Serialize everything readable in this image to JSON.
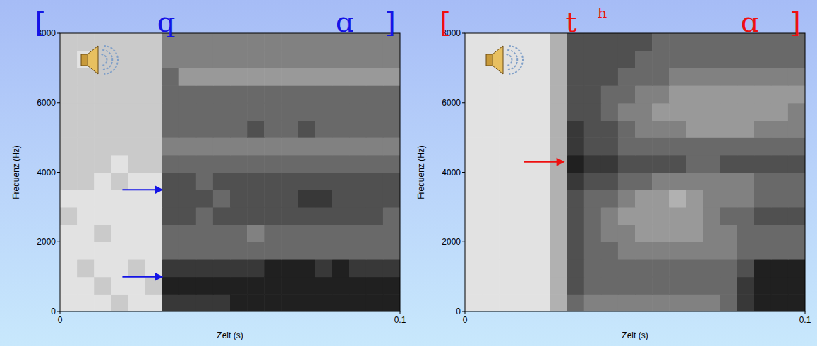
{
  "chart_data": [
    {
      "type": "heatmap",
      "title": "[qɑ]",
      "color": "#1414e6",
      "x_label": "Zeit (s)",
      "y_label": "Frequenz (Hz)",
      "xlim": [
        0,
        0.1
      ],
      "xticks": [
        0,
        0.1
      ],
      "ylim": [
        0,
        8000
      ],
      "yticks": [
        0,
        2000,
        4000,
        6000,
        8000
      ],
      "cell_width": 0.005,
      "cell_height": 500,
      "zlim": [
        0,
        9
      ],
      "arrows": [
        {
          "x": 0.031,
          "y": 3500
        },
        {
          "x": 0.031,
          "y": 1000
        }
      ],
      "cells": [
        [
          1,
          1,
          1,
          2,
          1,
          1,
          8,
          8,
          8,
          8,
          9,
          9,
          9,
          9,
          9,
          9,
          9,
          9,
          9,
          9
        ],
        [
          1,
          1,
          2,
          1,
          1,
          2,
          9,
          9,
          9,
          9,
          9,
          9,
          9,
          9,
          9,
          9,
          9,
          9,
          9,
          9
        ],
        [
          1,
          2,
          1,
          1,
          2,
          1,
          8,
          8,
          8,
          8,
          8,
          8,
          9,
          9,
          9,
          8,
          9,
          8,
          8,
          8
        ],
        [
          1,
          1,
          1,
          1,
          1,
          1,
          6,
          6,
          6,
          6,
          6,
          6,
          6,
          6,
          6,
          6,
          6,
          6,
          6,
          6
        ],
        [
          1,
          1,
          2,
          1,
          1,
          1,
          6,
          6,
          6,
          6,
          6,
          5,
          6,
          6,
          6,
          6,
          6,
          6,
          6,
          6
        ],
        [
          2,
          1,
          1,
          1,
          1,
          1,
          7,
          7,
          6,
          7,
          7,
          7,
          7,
          7,
          7,
          7,
          7,
          7,
          7,
          6
        ],
        [
          1,
          1,
          1,
          1,
          1,
          1,
          7,
          7,
          7,
          6,
          7,
          7,
          7,
          7,
          8,
          8,
          7,
          7,
          7,
          7
        ],
        [
          2,
          2,
          1,
          2,
          1,
          1,
          7,
          7,
          6,
          7,
          7,
          7,
          7,
          7,
          7,
          7,
          7,
          7,
          7,
          7
        ],
        [
          2,
          2,
          2,
          1,
          2,
          2,
          6,
          6,
          6,
          6,
          6,
          6,
          6,
          6,
          6,
          6,
          6,
          6,
          6,
          6
        ],
        [
          2,
          2,
          2,
          2,
          2,
          2,
          5,
          5,
          5,
          5,
          5,
          5,
          5,
          5,
          5,
          5,
          5,
          5,
          5,
          5
        ],
        [
          2,
          2,
          2,
          2,
          2,
          2,
          6,
          6,
          6,
          6,
          6,
          7,
          6,
          6,
          7,
          6,
          6,
          6,
          6,
          6
        ],
        [
          2,
          2,
          2,
          2,
          2,
          2,
          6,
          6,
          6,
          6,
          6,
          6,
          6,
          6,
          6,
          6,
          6,
          6,
          6,
          6
        ],
        [
          2,
          2,
          2,
          2,
          2,
          2,
          6,
          6,
          6,
          6,
          6,
          6,
          6,
          6,
          6,
          6,
          6,
          6,
          6,
          6
        ],
        [
          2,
          2,
          2,
          2,
          2,
          2,
          6,
          4,
          4,
          4,
          4,
          4,
          4,
          4,
          4,
          4,
          4,
          4,
          4,
          4
        ],
        [
          2,
          1,
          2,
          2,
          2,
          2,
          5,
          5,
          5,
          5,
          5,
          5,
          5,
          5,
          5,
          5,
          5,
          5,
          5,
          5
        ],
        [
          2,
          2,
          2,
          2,
          2,
          2,
          5,
          5,
          5,
          5,
          5,
          5,
          5,
          5,
          5,
          5,
          5,
          5,
          5,
          5
        ]
      ]
    },
    {
      "type": "heatmap",
      "title": "[tʰɑ]",
      "color": "#ee1010",
      "x_label": "Zeit (s)",
      "y_label": "Frequenz (Hz)",
      "xlim": [
        0,
        0.1
      ],
      "xticks": [
        0,
        0.1
      ],
      "ylim": [
        0,
        8000
      ],
      "yticks": [
        0,
        2000,
        4000,
        6000,
        8000
      ],
      "cell_width": 0.005,
      "cell_height": 500,
      "zlim": [
        0,
        9
      ],
      "arrows": [
        {
          "x": 0.03,
          "y": 4300
        }
      ],
      "cells": [
        [
          1,
          1,
          1,
          1,
          1,
          3,
          6,
          5,
          5,
          5,
          5,
          5,
          5,
          5,
          5,
          6,
          8,
          9,
          9,
          9
        ],
        [
          1,
          1,
          1,
          1,
          1,
          3,
          7,
          6,
          6,
          6,
          6,
          6,
          6,
          6,
          6,
          6,
          8,
          9,
          9,
          9
        ],
        [
          1,
          1,
          1,
          1,
          1,
          3,
          7,
          6,
          6,
          6,
          6,
          6,
          6,
          6,
          6,
          6,
          7,
          9,
          9,
          9
        ],
        [
          1,
          1,
          1,
          1,
          1,
          3,
          7,
          6,
          6,
          5,
          5,
          5,
          5,
          5,
          5,
          5,
          6,
          6,
          6,
          6
        ],
        [
          1,
          1,
          1,
          1,
          1,
          3,
          7,
          6,
          5,
          5,
          4,
          4,
          4,
          4,
          5,
          5,
          6,
          6,
          6,
          6
        ],
        [
          1,
          1,
          1,
          1,
          1,
          3,
          7,
          6,
          5,
          4,
          4,
          4,
          4,
          4,
          5,
          6,
          6,
          7,
          7,
          7
        ],
        [
          1,
          1,
          1,
          1,
          1,
          3,
          7,
          6,
          6,
          5,
          4,
          4,
          3,
          4,
          5,
          5,
          5,
          6,
          6,
          6
        ],
        [
          1,
          1,
          1,
          1,
          1,
          3,
          8,
          7,
          7,
          6,
          6,
          5,
          5,
          5,
          5,
          5,
          5,
          6,
          6,
          6
        ],
        [
          1,
          1,
          1,
          1,
          1,
          3,
          9,
          8,
          8,
          7,
          7,
          7,
          7,
          6,
          6,
          7,
          7,
          7,
          7,
          7
        ],
        [
          1,
          1,
          1,
          1,
          1,
          3,
          8,
          7,
          7,
          6,
          6,
          6,
          6,
          6,
          6,
          6,
          6,
          6,
          6,
          6
        ],
        [
          1,
          1,
          1,
          1,
          1,
          3,
          8,
          7,
          7,
          6,
          5,
          5,
          5,
          4,
          4,
          4,
          4,
          5,
          5,
          5
        ],
        [
          1,
          1,
          1,
          1,
          1,
          3,
          7,
          7,
          6,
          5,
          5,
          4,
          4,
          4,
          4,
          4,
          4,
          4,
          4,
          5
        ],
        [
          1,
          1,
          1,
          1,
          1,
          3,
          7,
          7,
          6,
          6,
          5,
          5,
          4,
          4,
          4,
          4,
          4,
          4,
          4,
          4
        ],
        [
          1,
          1,
          1,
          1,
          1,
          3,
          7,
          7,
          7,
          6,
          6,
          6,
          5,
          5,
          5,
          5,
          5,
          5,
          5,
          5
        ],
        [
          1,
          1,
          1,
          1,
          1,
          3,
          7,
          7,
          7,
          7,
          6,
          6,
          6,
          6,
          6,
          6,
          6,
          6,
          6,
          6
        ],
        [
          1,
          1,
          1,
          1,
          1,
          3,
          7,
          7,
          7,
          7,
          7,
          6,
          6,
          6,
          6,
          6,
          6,
          6,
          6,
          6
        ]
      ]
    }
  ]
}
